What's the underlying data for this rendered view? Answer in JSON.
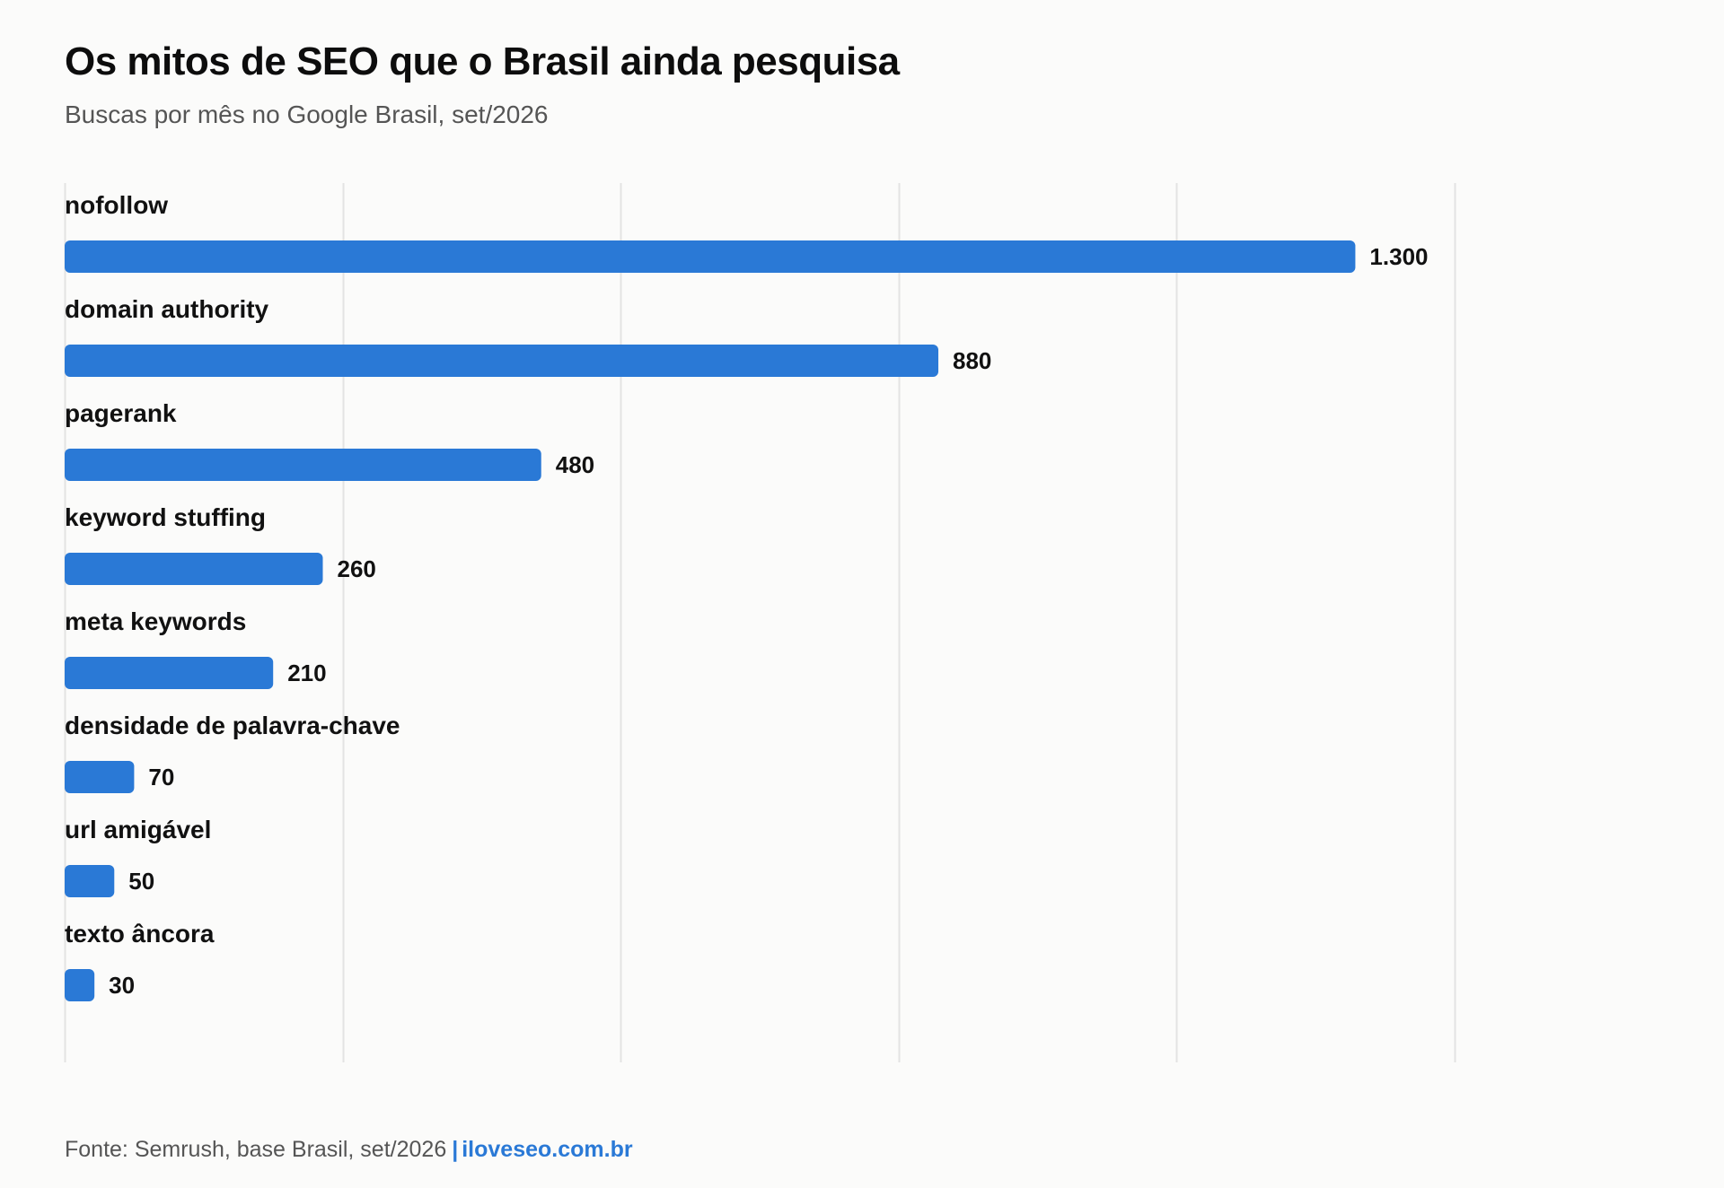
{
  "title": "Os mitos de SEO que o Brasil ainda pesquisa",
  "subtitle": "Buscas por mês no Google Brasil, set/2026",
  "footer": {
    "source": "Fonte: Semrush, base Brasil, set/2026",
    "separator": "|",
    "brand": "iloveseo.com.br"
  },
  "colors": {
    "bar": "#2a79d6",
    "brand": "#2a79d6",
    "grid": "#e3e3e3"
  },
  "chart_data": {
    "type": "bar",
    "orientation": "horizontal",
    "categories": [
      "nofollow",
      "domain authority",
      "pagerank",
      "keyword stuffing",
      "meta keywords",
      "densidade de palavra-chave",
      "url amigável",
      "texto âncora"
    ],
    "values": [
      1300,
      880,
      480,
      260,
      210,
      70,
      50,
      30
    ],
    "value_labels": [
      "1.300",
      "880",
      "480",
      "260",
      "210",
      "70",
      "50",
      "30"
    ],
    "xlim": [
      0,
      1400
    ],
    "grid": true,
    "gridlines": [
      0,
      280,
      560,
      840,
      1120,
      1400
    ]
  }
}
